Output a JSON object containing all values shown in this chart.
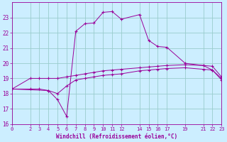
{
  "xlabel": "Windchill (Refroidissement éolien,°C)",
  "bg_color": "#cceeff",
  "grid_color": "#99cccc",
  "line_color": "#990099",
  "xlim": [
    0,
    23
  ],
  "ylim": [
    16,
    24
  ],
  "yticks": [
    16,
    17,
    18,
    19,
    20,
    21,
    22,
    23
  ],
  "xticks": [
    0,
    2,
    3,
    4,
    5,
    6,
    7,
    8,
    9,
    10,
    11,
    12,
    14,
    15,
    16,
    17,
    19,
    21,
    22,
    23
  ],
  "line1_x": [
    0,
    2,
    3,
    4,
    5,
    6,
    7,
    8,
    9,
    10,
    11,
    12,
    14,
    15,
    16,
    17,
    19,
    21,
    22,
    23
  ],
  "line1_y": [
    18.3,
    19.0,
    19.0,
    19.0,
    19.0,
    19.1,
    19.2,
    19.3,
    19.4,
    19.5,
    19.55,
    19.6,
    19.7,
    19.75,
    19.8,
    19.85,
    19.9,
    19.85,
    19.8,
    19.1
  ],
  "line2_x": [
    0,
    2,
    3,
    4,
    5,
    6,
    7,
    8,
    9,
    10,
    11,
    12,
    14,
    15,
    16,
    17,
    19,
    21,
    22,
    23
  ],
  "line2_y": [
    18.3,
    18.3,
    18.3,
    18.2,
    18.0,
    18.5,
    18.9,
    19.0,
    19.1,
    19.2,
    19.25,
    19.3,
    19.5,
    19.55,
    19.6,
    19.65,
    19.7,
    19.6,
    19.55,
    18.9
  ],
  "line3_x": [
    0,
    4,
    5,
    6,
    7,
    8,
    9,
    10,
    11,
    12,
    14,
    15,
    16,
    17,
    19,
    21,
    22,
    23
  ],
  "line3_y": [
    18.3,
    18.2,
    17.6,
    16.5,
    22.1,
    22.6,
    22.65,
    23.35,
    23.4,
    22.9,
    23.2,
    21.5,
    21.1,
    21.05,
    20.0,
    19.85,
    19.55,
    19.0
  ]
}
